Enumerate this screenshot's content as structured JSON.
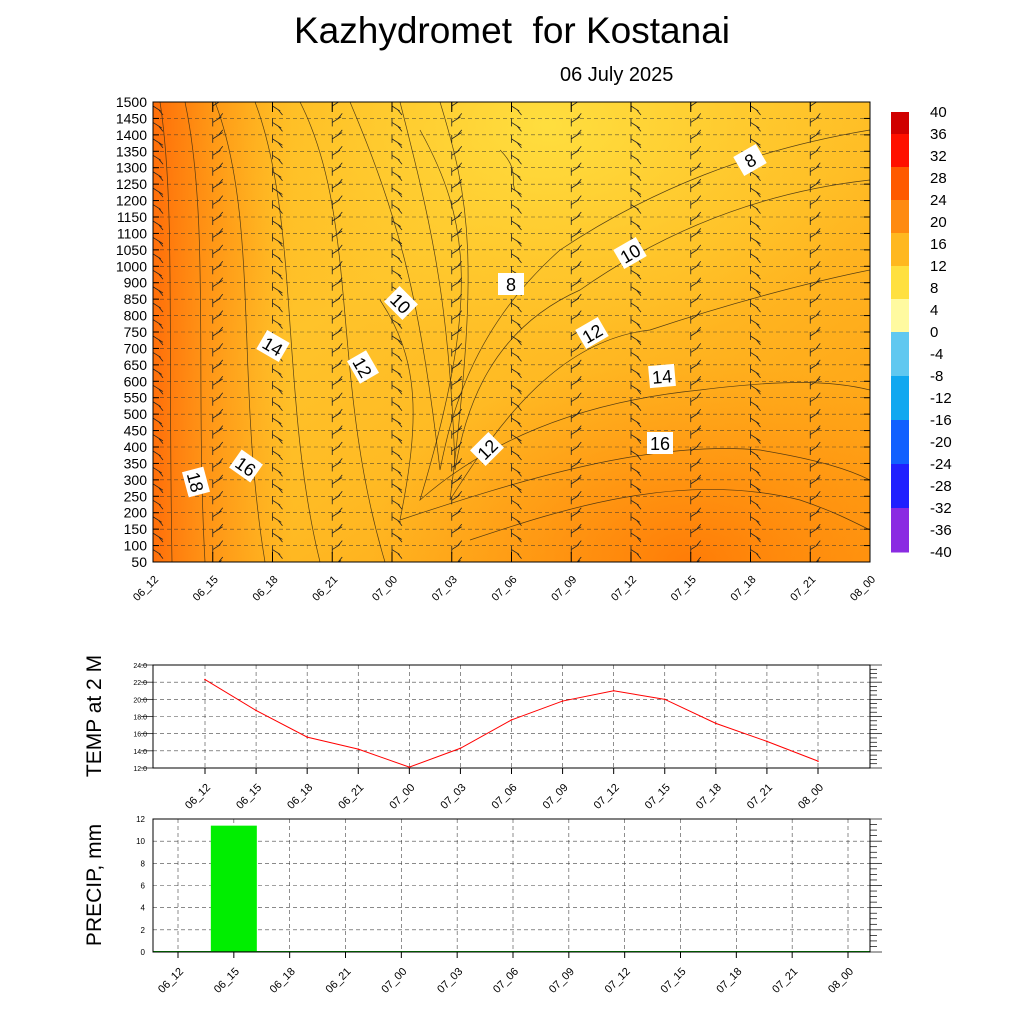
{
  "header": {
    "title": "Kazhydromet  for Kostanai",
    "subtitle": "06 July 2025"
  },
  "chart_data": [
    {
      "type": "heatmap",
      "title": "Kazhydromet  for Kostanai",
      "subtitle": "06 July 2025",
      "x_labels": [
        "06_12",
        "06_15",
        "06_18",
        "06_21",
        "07_00",
        "07_03",
        "07_06",
        "07_09",
        "07_12",
        "07_15",
        "07_18",
        "07_21",
        "08_00"
      ],
      "y_labels": [
        "1500",
        "1450",
        "1400",
        "1350",
        "1300",
        "1250",
        "1200",
        "1150",
        "1100",
        "1050",
        "1000",
        "900",
        "850",
        "800",
        "750",
        "700",
        "650",
        "600",
        "550",
        "500",
        "450",
        "400",
        "350",
        "300",
        "250",
        "200",
        "150",
        "100",
        "50"
      ],
      "contour_labels": [
        "8",
        "8",
        "10",
        "10",
        "12",
        "12",
        "12",
        "14",
        "14",
        "16",
        "16",
        "18"
      ],
      "colorbar_labels": [
        "40",
        "36",
        "32",
        "28",
        "24",
        "20",
        "16",
        "12",
        "8",
        "4",
        "0",
        "-4",
        "-8",
        "-12",
        "-16",
        "-20",
        "-24",
        "-28",
        "-32",
        "-36",
        "-40"
      ],
      "colorbar_range": [
        -40,
        40
      ],
      "grid": true,
      "wind_barbs": true
    },
    {
      "type": "line",
      "ylabel": "TEMP at 2 M",
      "ylim": [
        12.0,
        24.0
      ],
      "y_ticks": [
        "24.0",
        "22.0",
        "20.0",
        "18.0",
        "16.0",
        "14.0",
        "12.0"
      ],
      "categories": [
        "06_12",
        "06_15",
        "06_18",
        "06_21",
        "07_00",
        "07_03",
        "07_06",
        "07_09",
        "07_12",
        "07_15",
        "07_18",
        "07_21",
        "08_00"
      ],
      "values": [
        22.3,
        18.7,
        15.6,
        14.2,
        12.1,
        14.3,
        17.6,
        19.8,
        21.0,
        20.0,
        17.2,
        15.1,
        12.8
      ],
      "color": "#ff0000",
      "grid": true
    },
    {
      "type": "bar",
      "ylabel": "PRECIP, mm",
      "ylim": [
        0,
        12
      ],
      "y_ticks": [
        "12",
        "10",
        "8",
        "6",
        "4",
        "2",
        "0"
      ],
      "categories": [
        "06_12",
        "06_15",
        "06_18",
        "06_21",
        "07_00",
        "07_03",
        "07_06",
        "07_09",
        "07_12",
        "07_15",
        "07_18",
        "07_21",
        "08_00"
      ],
      "values": [
        0,
        11.4,
        0,
        0,
        0,
        0,
        0,
        0,
        0,
        0,
        0,
        0,
        0
      ],
      "color": "#00ee00",
      "grid": true
    }
  ]
}
